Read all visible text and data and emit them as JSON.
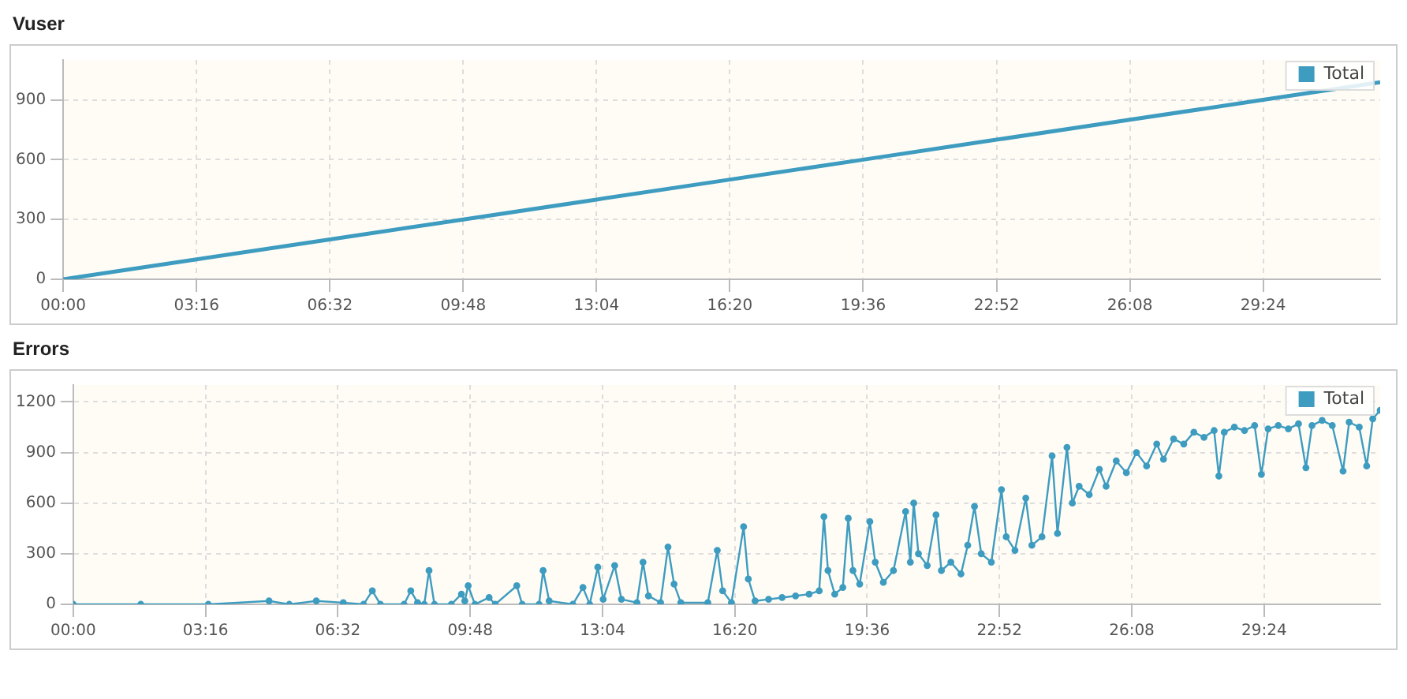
{
  "chart_data": [
    {
      "type": "line",
      "title": "Vuser",
      "legend": "top right",
      "grid": true,
      "marker": "none",
      "line_style": "solid",
      "xlim": [
        0,
        1936
      ],
      "xticks": [
        {
          "value": 0,
          "label": "00:00"
        },
        {
          "value": 196,
          "label": "03:16"
        },
        {
          "value": 392,
          "label": "06:32"
        },
        {
          "value": 588,
          "label": "09:48"
        },
        {
          "value": 784,
          "label": "13:04"
        },
        {
          "value": 980,
          "label": "16:20"
        },
        {
          "value": 1176,
          "label": "19:36"
        },
        {
          "value": 1372,
          "label": "22:52"
        },
        {
          "value": 1568,
          "label": "26:08"
        },
        {
          "value": 1764,
          "label": "29:24"
        }
      ],
      "ylim": [
        0,
        1100
      ],
      "yticks": [
        0,
        300,
        600,
        900
      ],
      "series": [
        {
          "name": "Total",
          "color": "#3d9cc0",
          "x": [
            0,
            196,
            392,
            588,
            784,
            980,
            1176,
            1372,
            1568,
            1764,
            1936
          ],
          "values": [
            0,
            100,
            200,
            300,
            400,
            500,
            600,
            700,
            800,
            900,
            988
          ]
        }
      ]
    },
    {
      "type": "line",
      "title": "Errors",
      "legend": "top right",
      "grid": true,
      "marker": "circle",
      "line_style": "solid",
      "xlim": [
        0,
        1936
      ],
      "xticks": [
        {
          "value": 0,
          "label": "00:00"
        },
        {
          "value": 196,
          "label": "03:16"
        },
        {
          "value": 392,
          "label": "06:32"
        },
        {
          "value": 588,
          "label": "09:48"
        },
        {
          "value": 784,
          "label": "13:04"
        },
        {
          "value": 980,
          "label": "16:20"
        },
        {
          "value": 1176,
          "label": "19:36"
        },
        {
          "value": 1372,
          "label": "22:52"
        },
        {
          "value": 1568,
          "label": "26:08"
        },
        {
          "value": 1764,
          "label": "29:24"
        }
      ],
      "ylim": [
        0,
        1300
      ],
      "yticks": [
        0,
        300,
        600,
        900,
        1200
      ],
      "series": [
        {
          "name": "Total",
          "color": "#3d9cc0",
          "x": [
            0,
            100,
            200,
            290,
            320,
            360,
            400,
            430,
            443,
            455,
            490,
            500,
            510,
            520,
            527,
            535,
            560,
            575,
            580,
            585,
            595,
            616,
            625,
            657,
            665,
            690,
            696,
            705,
            740,
            755,
            765,
            777,
            785,
            802,
            812,
            835,
            844,
            852,
            870,
            881,
            890,
            900,
            940,
            954,
            962,
            975,
            993,
            1000,
            1010,
            1030,
            1050,
            1070,
            1090,
            1105,
            1112,
            1118,
            1128,
            1140,
            1148,
            1155,
            1165,
            1180,
            1188,
            1200,
            1215,
            1233,
            1240,
            1245,
            1252,
            1265,
            1278,
            1286,
            1300,
            1315,
            1325,
            1335,
            1345,
            1360,
            1375,
            1382,
            1395,
            1411,
            1420,
            1435,
            1450,
            1458,
            1472,
            1480,
            1490,
            1505,
            1520,
            1530,
            1545,
            1560,
            1575,
            1590,
            1605,
            1615,
            1630,
            1645,
            1660,
            1675,
            1690,
            1697,
            1705,
            1720,
            1735,
            1750,
            1760,
            1770,
            1785,
            1800,
            1815,
            1826,
            1835,
            1850,
            1865,
            1881,
            1890,
            1905,
            1916,
            1925,
            1936
          ],
          "values": [
            0,
            0,
            0,
            20,
            0,
            20,
            10,
            0,
            80,
            0,
            0,
            80,
            10,
            0,
            200,
            0,
            0,
            60,
            20,
            110,
            0,
            40,
            0,
            110,
            0,
            0,
            200,
            20,
            0,
            100,
            0,
            220,
            30,
            230,
            30,
            10,
            250,
            50,
            10,
            340,
            120,
            10,
            10,
            320,
            80,
            10,
            460,
            150,
            20,
            30,
            40,
            50,
            60,
            80,
            520,
            200,
            60,
            100,
            510,
            200,
            120,
            490,
            250,
            130,
            200,
            550,
            250,
            600,
            300,
            230,
            530,
            200,
            250,
            180,
            350,
            580,
            300,
            250,
            680,
            400,
            320,
            630,
            350,
            400,
            880,
            420,
            930,
            600,
            700,
            650,
            800,
            700,
            850,
            780,
            900,
            820,
            950,
            860,
            980,
            950,
            1020,
            990,
            1030,
            760,
            1020,
            1050,
            1030,
            1060,
            770,
            1040,
            1060,
            1040,
            1070,
            810,
            1060,
            1090,
            1060,
            790,
            1080,
            1050,
            820,
            1100,
            1150
          ]
        }
      ]
    }
  ]
}
